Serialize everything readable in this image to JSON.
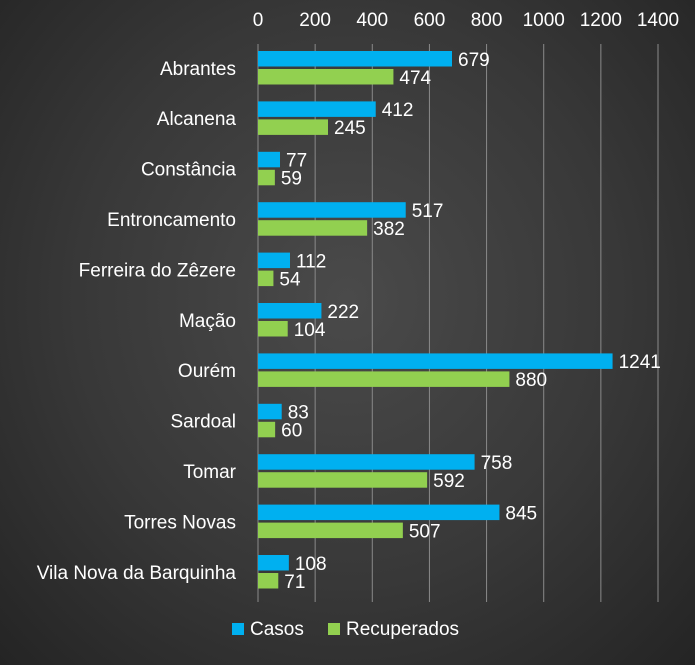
{
  "chart_data": {
    "type": "bar",
    "orientation": "horizontal",
    "categories": [
      "Abrantes",
      "Alcanena",
      "Constância",
      "Entroncamento",
      "Ferreira do Zêzere",
      "Mação",
      "Ourém",
      "Sardoal",
      "Tomar",
      "Torres Novas",
      "Vila Nova da Barquinha"
    ],
    "series": [
      {
        "name": "Casos",
        "color": "#00b0f0",
        "values": [
          679,
          412,
          77,
          517,
          112,
          222,
          1241,
          83,
          758,
          845,
          108
        ]
      },
      {
        "name": "Recuperados",
        "color": "#92d050",
        "values": [
          474,
          245,
          59,
          382,
          54,
          104,
          880,
          60,
          592,
          507,
          71
        ]
      }
    ],
    "xlim": [
      0,
      1400
    ],
    "xticks": [
      0,
      200,
      400,
      600,
      800,
      1000,
      1200,
      1400
    ],
    "axis_position": "top",
    "grid": true,
    "data_labels": true,
    "legend": "bottom"
  }
}
